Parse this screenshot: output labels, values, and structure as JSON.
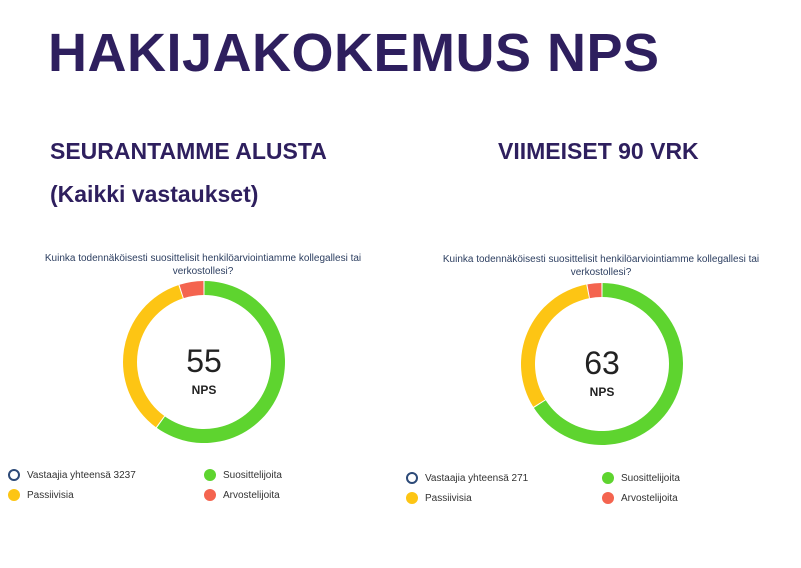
{
  "title": "HAKIJAKOKEMUS NPS",
  "colors": {
    "promoters": "#5ed42f",
    "passives": "#fdc514",
    "detractors": "#f4644f",
    "respondents": "#2d4a78"
  },
  "charts": [
    {
      "heading": "SEURANTAMME ALUSTA",
      "subheading": "(Kaikki vastaukset)",
      "question": "Kuinka todennäköisesti suosittelisit henkilöarviointiamme kollegallesi tai verkostollesi?",
      "center_value": "55",
      "center_label": "NPS",
      "legend": {
        "respondents": "Vastaajia yhteensä 3237",
        "promoters": "Suosittelijoita",
        "passives": "Passiivisia",
        "detractors": "Arvostelijoita"
      }
    },
    {
      "heading": "VIIMEISET 90 VRK",
      "subheading": "",
      "question": "Kuinka todennäköisesti suosittelisit henkilöarviointiamme kollegallesi tai verkostollesi?",
      "center_value": "63",
      "center_label": "NPS",
      "legend": {
        "respondents": "Vastaajia yhteensä 271",
        "promoters": "Suosittelijoita",
        "passives": "Passiivisia",
        "detractors": "Arvostelijoita"
      }
    }
  ],
  "chart_data": [
    {
      "type": "pie",
      "categories": [
        "Suosittelijoita",
        "Passiivisia",
        "Arvostelijoita"
      ],
      "values": [
        60,
        35,
        5
      ]
    },
    {
      "type": "pie",
      "categories": [
        "Suosittelijoita",
        "Passiivisia",
        "Arvostelijoita"
      ],
      "values": [
        66,
        31,
        3
      ]
    }
  ]
}
